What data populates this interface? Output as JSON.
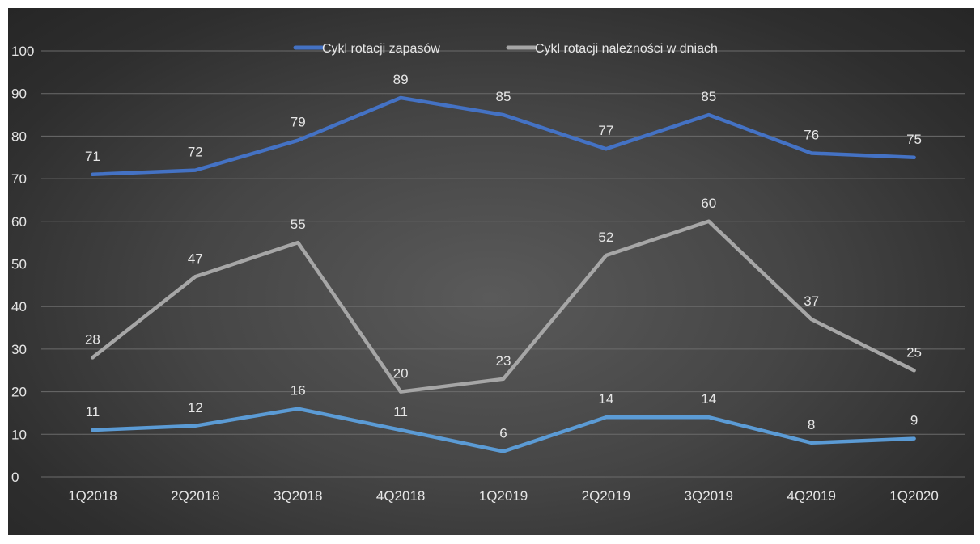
{
  "chart_data": {
    "type": "line",
    "categories": [
      "1Q2018",
      "2Q2018",
      "3Q2018",
      "4Q2018",
      "1Q2019",
      "2Q2019",
      "3Q2019",
      "4Q2019",
      "1Q2020"
    ],
    "ylim": [
      0,
      100
    ],
    "yticks": [
      0,
      10,
      20,
      30,
      40,
      50,
      60,
      70,
      80,
      90,
      100
    ],
    "grid": true,
    "legend_position": "top-center",
    "series": [
      {
        "name": "Cykl rotacji zapasów",
        "color": "#4472c4",
        "values": [
          71,
          72,
          79,
          89,
          85,
          77,
          85,
          76,
          75
        ],
        "in_legend": true
      },
      {
        "name": "Cykl rotacji należności w dniach",
        "color": "#a6a6a6",
        "values": [
          28,
          47,
          55,
          20,
          23,
          52,
          60,
          37,
          25
        ],
        "in_legend": true
      },
      {
        "name": "",
        "color": "#5b9bd5",
        "values": [
          11,
          12,
          16,
          11,
          6,
          14,
          14,
          8,
          9
        ],
        "in_legend": false
      }
    ]
  }
}
